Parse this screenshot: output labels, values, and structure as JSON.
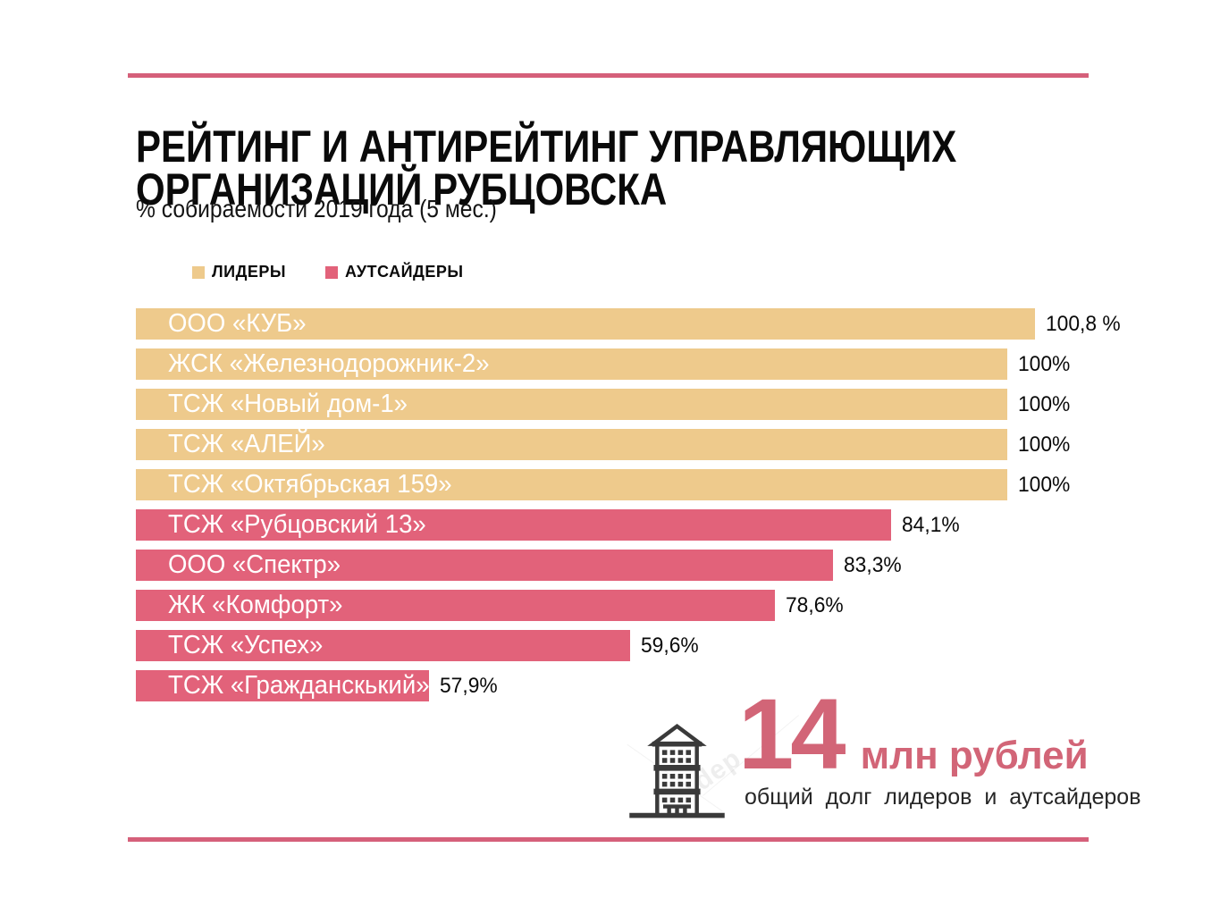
{
  "header": {
    "title_lines": [
      "РЕЙТИНГ И АНТИРЕЙТИНГ УПРАВЛЯЮЩИХ",
      "ОРГАНИЗАЦИЙ РУБЦОВСКА"
    ],
    "subtitle": "% собираемости 2019 года (5 мес.)"
  },
  "colors": {
    "leader": "#eeca8c",
    "outsider": "#e2627a",
    "accent_line": "#d5607a",
    "amount_text": "#d26577",
    "icon_stroke": "#3a3a3a"
  },
  "chart_data": {
    "type": "bar",
    "orientation": "horizontal",
    "title": "РЕЙТИНГ И АНТИРЕЙТИНГ УПРАВЛЯЮЩИХ ОРГАНИЗАЦИЙ РУБЦОВСКА",
    "subtitle": "% собираемости 2019 года (5 мес.)",
    "unit": "percent collected",
    "xlim": [
      0,
      103
    ],
    "grid": false,
    "legend_position": "top-left",
    "legend": [
      {
        "label": "ЛИДЕРЫ",
        "color": "#eeca8c"
      },
      {
        "label": "АУТСАЙДЕРЫ",
        "color": "#e2627a"
      }
    ],
    "bars": [
      {
        "label": "ООО «КУБ»",
        "value": 100.8,
        "value_label": "100,8 %",
        "group": "leader",
        "display_width": 1006
      },
      {
        "label": "ЖСК «Железнодорожник-2»",
        "value": 100,
        "value_label": "100%",
        "group": "leader",
        "display_width": 975
      },
      {
        "label": "ТСЖ «Новый дом-1»",
        "value": 100,
        "value_label": "100%",
        "group": "leader",
        "display_width": 975
      },
      {
        "label": "ТСЖ «АЛЕЙ»",
        "value": 100,
        "value_label": "100%",
        "group": "leader",
        "display_width": 975
      },
      {
        "label": "ТСЖ «Октябрьская 159»",
        "value": 100,
        "value_label": "100%",
        "group": "leader",
        "display_width": 975
      },
      {
        "label": "ТСЖ «Рубцовский 13»",
        "value": 84.1,
        "value_label": "84,1%",
        "group": "outsider",
        "display_width": 845
      },
      {
        "label": "ООО «Спектр»",
        "value": 83.3,
        "value_label": "83,3%",
        "group": "outsider",
        "display_width": 780
      },
      {
        "label": "ЖК «Комфорт»",
        "value": 78.6,
        "value_label": "78,6%",
        "group": "outsider",
        "display_width": 715
      },
      {
        "label": "ТСЖ «Успех»",
        "value": 59.6,
        "value_label": "59,6%",
        "group": "outsider",
        "display_width": 553
      },
      {
        "label": "ТСЖ «Гражданскький»",
        "value": 57.9,
        "value_label": "57,9%",
        "group": "outsider",
        "display_width": 328
      }
    ]
  },
  "footer": {
    "amount": "14",
    "unit": "млн рублей",
    "caption": "общий долг лидеров и аутсайдеров",
    "icon": "building-icon",
    "watermark": "dep"
  }
}
